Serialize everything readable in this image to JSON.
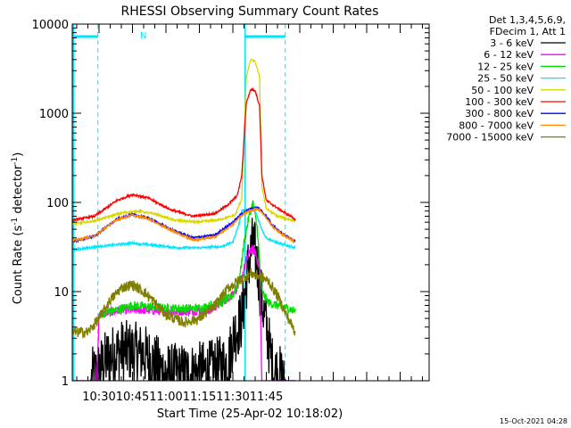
{
  "chart_data": {
    "type": "line",
    "title": "RHESSI Observing Summary Count Rates",
    "xlabel": "Start Time (25-Apr-02 10:18:02)",
    "ylabel_main": "Count Rate (s",
    "ylabel_sup1": "-1",
    "ylabel_mid": " detector",
    "ylabel_sup2": "-1",
    "ylabel_end": ")",
    "y_scale": "log",
    "ylim": [
      1,
      10000
    ],
    "xlim_minutes": [
      618,
      778
    ],
    "x_ticks": [
      {
        "label": "10:30",
        "minute": 630
      },
      {
        "label": "10:45",
        "minute": 645
      },
      {
        "label": "11:00",
        "minute": 660
      },
      {
        "label": "11:15",
        "minute": 675
      },
      {
        "label": "11:30",
        "minute": 690
      },
      {
        "label": "11:45",
        "minute": 705
      }
    ],
    "y_ticks": [
      {
        "label": "1",
        "value": 1
      },
      {
        "label": "10",
        "value": 10
      },
      {
        "label": "100",
        "value": 100
      },
      {
        "label": "1000",
        "value": 1000
      },
      {
        "label": "10000",
        "value": 10000
      }
    ],
    "legend_header": [
      "Det 1,3,4,5,6,9,",
      "FDecim 1, Att 1"
    ],
    "legend_placement": "right",
    "footer_date": "15-Oct-2021 04:28",
    "flag_label": "N",
    "series": [
      {
        "name": "3 - 6 keV",
        "color": "#000000",
        "points": [
          [
            618,
            1
          ],
          [
            626,
            1
          ],
          [
            634,
            1.8
          ],
          [
            640,
            2.2
          ],
          [
            650,
            2.0
          ],
          [
            660,
            1.2
          ],
          [
            670,
            1.2
          ],
          [
            680,
            1.3
          ],
          [
            688,
            1.6
          ],
          [
            690,
            3
          ],
          [
            694,
            5
          ],
          [
            697,
            20
          ],
          [
            699,
            35
          ],
          [
            701,
            20
          ],
          [
            703,
            8
          ],
          [
            705,
            4
          ],
          [
            708,
            1.3
          ],
          [
            714,
            1
          ],
          [
            718,
            1
          ]
        ]
      },
      {
        "name": "6 - 12 keV",
        "color": "#ff00ff",
        "points": [
          [
            618,
            1
          ],
          [
            629,
            1
          ],
          [
            630,
            5.5
          ],
          [
            640,
            6.2
          ],
          [
            650,
            6.2
          ],
          [
            660,
            6.0
          ],
          [
            670,
            6.0
          ],
          [
            680,
            6.2
          ],
          [
            688,
            8.5
          ],
          [
            693,
            12
          ],
          [
            696,
            22
          ],
          [
            698,
            30
          ],
          [
            700,
            28
          ],
          [
            702,
            18
          ],
          [
            703,
            1
          ],
          [
            718,
            1
          ]
        ]
      },
      {
        "name": "12 - 25 keV",
        "color": "#00dd00",
        "points": [
          [
            630,
            5.5
          ],
          [
            645,
            7
          ],
          [
            660,
            6.5
          ],
          [
            675,
            6.5
          ],
          [
            685,
            7.5
          ],
          [
            690,
            9
          ],
          [
            693,
            14
          ],
          [
            695,
            35
          ],
          [
            697,
            65
          ],
          [
            699,
            100
          ],
          [
            701,
            50
          ],
          [
            702,
            20
          ],
          [
            703,
            10
          ],
          [
            706,
            7.5
          ],
          [
            710,
            7
          ],
          [
            715,
            6.5
          ],
          [
            718,
            6
          ]
        ]
      },
      {
        "name": "25 - 50 keV",
        "color": "#00e5ff",
        "points": [
          [
            618,
            29
          ],
          [
            625,
            31
          ],
          [
            635,
            33
          ],
          [
            645,
            35
          ],
          [
            655,
            33
          ],
          [
            665,
            31
          ],
          [
            675,
            31
          ],
          [
            685,
            32
          ],
          [
            690,
            36
          ],
          [
            693,
            60
          ],
          [
            694,
            82
          ],
          [
            697,
            82
          ],
          [
            700,
            80
          ],
          [
            703,
            50
          ],
          [
            705,
            40
          ],
          [
            710,
            35
          ],
          [
            718,
            31
          ]
        ]
      },
      {
        "name": "50 - 100 keV",
        "color": "#d8d800",
        "points": [
          [
            618,
            57
          ],
          [
            628,
            62
          ],
          [
            640,
            76
          ],
          [
            648,
            80
          ],
          [
            656,
            73
          ],
          [
            664,
            63
          ],
          [
            674,
            60
          ],
          [
            684,
            64
          ],
          [
            691,
            72
          ],
          [
            694,
            110
          ],
          [
            696,
            2500
          ],
          [
            698,
            4000
          ],
          [
            700,
            3800
          ],
          [
            702,
            2500
          ],
          [
            703,
            150
          ],
          [
            705,
            85
          ],
          [
            710,
            70
          ],
          [
            718,
            62
          ]
        ]
      },
      {
        "name": "100 - 300 keV",
        "color": "#ff0000",
        "points": [
          [
            618,
            63
          ],
          [
            628,
            70
          ],
          [
            638,
            105
          ],
          [
            645,
            123
          ],
          [
            652,
            112
          ],
          [
            662,
            83
          ],
          [
            672,
            70
          ],
          [
            682,
            75
          ],
          [
            688,
            95
          ],
          [
            692,
            120
          ],
          [
            694,
            200
          ],
          [
            696,
            1300
          ],
          [
            698,
            1850
          ],
          [
            700,
            1800
          ],
          [
            702,
            1200
          ],
          [
            703,
            200
          ],
          [
            705,
            105
          ],
          [
            712,
            80
          ],
          [
            718,
            65
          ]
        ]
      },
      {
        "name": "300 - 800 keV",
        "color": "#0000ff",
        "points": [
          [
            618,
            36
          ],
          [
            628,
            42
          ],
          [
            638,
            65
          ],
          [
            645,
            73
          ],
          [
            652,
            67
          ],
          [
            662,
            50
          ],
          [
            672,
            40
          ],
          [
            682,
            43
          ],
          [
            690,
            60
          ],
          [
            694,
            75
          ],
          [
            698,
            85
          ],
          [
            701,
            88
          ],
          [
            703,
            80
          ],
          [
            708,
            55
          ],
          [
            712,
            45
          ],
          [
            718,
            37
          ]
        ]
      },
      {
        "name": "800 - 7000 keV",
        "color": "#ff8800",
        "points": [
          [
            618,
            37
          ],
          [
            628,
            42
          ],
          [
            638,
            64
          ],
          [
            645,
            72
          ],
          [
            652,
            66
          ],
          [
            662,
            49
          ],
          [
            672,
            38
          ],
          [
            682,
            41
          ],
          [
            690,
            57
          ],
          [
            694,
            72
          ],
          [
            698,
            82
          ],
          [
            701,
            85
          ],
          [
            703,
            78
          ],
          [
            708,
            53
          ],
          [
            712,
            44
          ],
          [
            718,
            36
          ]
        ]
      },
      {
        "name": "7000 - 15000 keV",
        "color": "#808000",
        "points": [
          [
            618,
            3.5
          ],
          [
            625,
            3.5
          ],
          [
            630,
            5
          ],
          [
            635,
            8
          ],
          [
            640,
            11
          ],
          [
            645,
            12
          ],
          [
            650,
            10
          ],
          [
            655,
            7.5
          ],
          [
            660,
            5.5
          ],
          [
            668,
            4.5
          ],
          [
            675,
            5
          ],
          [
            682,
            7
          ],
          [
            688,
            11
          ],
          [
            694,
            14
          ],
          [
            698,
            16
          ],
          [
            702,
            15
          ],
          [
            706,
            13
          ],
          [
            710,
            9
          ],
          [
            714,
            5.5
          ],
          [
            718,
            3.5
          ]
        ]
      }
    ]
  }
}
